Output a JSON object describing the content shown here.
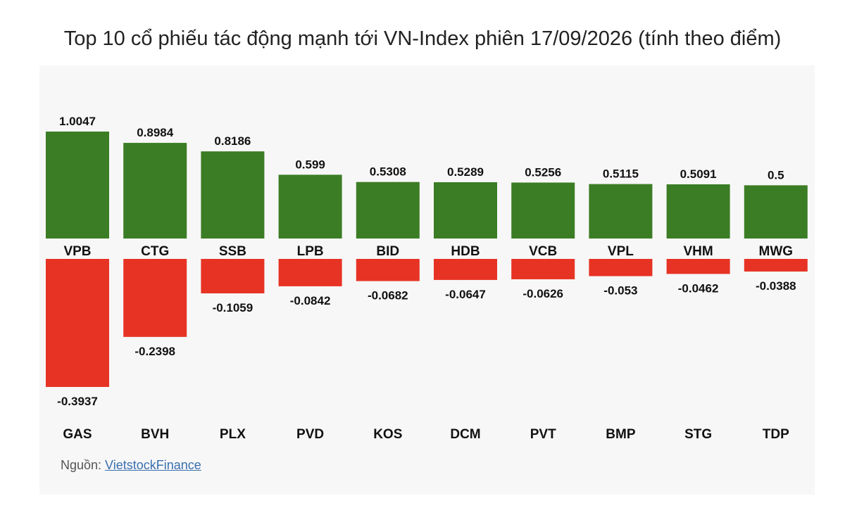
{
  "chart_data": {
    "type": "bar",
    "title": "Top 10 cổ phiếu tác động mạnh tới VN-Index phiên 17/09/2026 (tính theo điểm)",
    "positive": {
      "categories": [
        "VPB",
        "CTG",
        "SSB",
        "LPB",
        "BID",
        "HDB",
        "VCB",
        "VPL",
        "VHM",
        "MWG"
      ],
      "values": [
        1.0047,
        0.8984,
        0.8186,
        0.599,
        0.5308,
        0.5289,
        0.5256,
        0.5115,
        0.5091,
        0.5
      ],
      "labels": [
        "1.0047",
        "0.8984",
        "0.8186",
        "0.599",
        "0.5308",
        "0.5289",
        "0.5256",
        "0.5115",
        "0.5091",
        "0.5"
      ],
      "color": "#3a7d24"
    },
    "negative": {
      "categories": [
        "GAS",
        "BVH",
        "PLX",
        "PVD",
        "KOS",
        "DCM",
        "PVT",
        "BMP",
        "STG",
        "TDP"
      ],
      "values": [
        -0.3937,
        -0.2398,
        -0.1059,
        -0.0842,
        -0.0682,
        -0.0647,
        -0.0626,
        -0.053,
        -0.0462,
        -0.0388
      ],
      "labels": [
        "-0.3937",
        "-0.2398",
        "-0.1059",
        "-0.0842",
        "-0.0682",
        "-0.0647",
        "-0.0626",
        "-0.053",
        "-0.0462",
        "-0.0388"
      ],
      "color": "#e63323"
    }
  },
  "source": {
    "prefix": "Nguồn: ",
    "link_text": "VietstockFinance"
  }
}
